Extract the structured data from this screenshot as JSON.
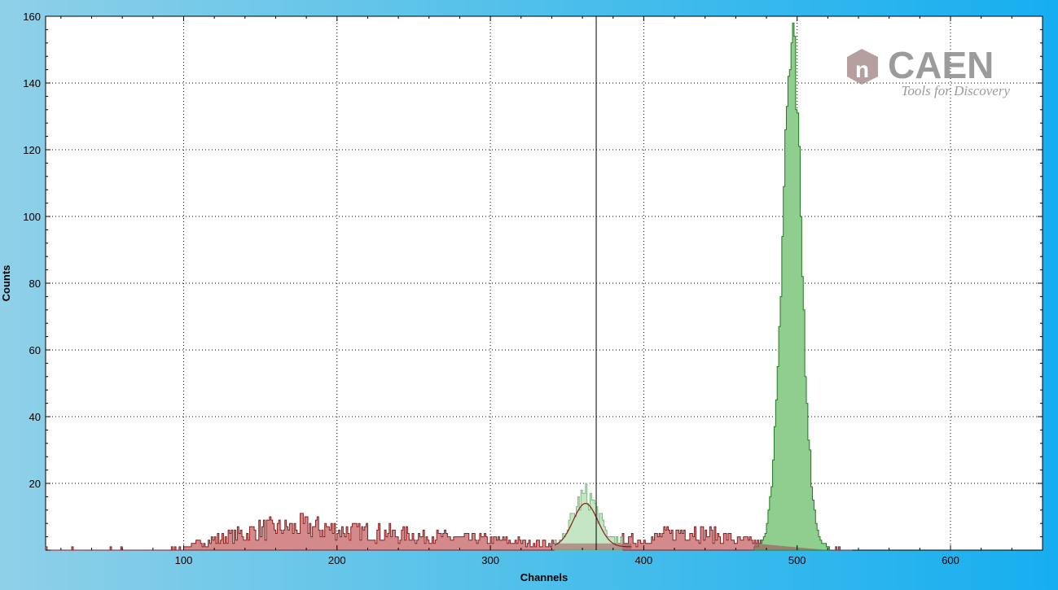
{
  "logo": {
    "brand": "CAEN",
    "tagline": "Tools for Discovery",
    "mark_glyph": "n",
    "color": "#8a8a8a",
    "mark_color": "#9c7f7f"
  },
  "colors": {
    "plot_bg": "#ffffff",
    "grid": "#000000",
    "red_fill": "#d48a8a",
    "red_line": "#8b1a1a",
    "green_fill": "#8fce8f",
    "green_line": "#1f7a1f",
    "light_green_fill": "#c4e6c4",
    "cursor": "#000000"
  },
  "chart_data": {
    "type": "histogram",
    "xlabel": "Channels",
    "ylabel": "Counts",
    "xlim": [
      10,
      660
    ],
    "ylim": [
      0,
      160
    ],
    "xticks": [
      100,
      200,
      300,
      400,
      500,
      600
    ],
    "yticks": [
      20,
      40,
      60,
      80,
      100,
      120,
      140,
      160
    ],
    "grid": true,
    "cursor_channel": 369,
    "series": [
      {
        "role": "background spectrum (red)",
        "channel_range": [
          10,
          535
        ],
        "description_points": [
          {
            "x": 10,
            "y": 1
          },
          {
            "x": 80,
            "y": 1
          },
          {
            "x": 100,
            "y": 1
          },
          {
            "x": 120,
            "y": 3
          },
          {
            "x": 150,
            "y": 6
          },
          {
            "x": 180,
            "y": 7
          },
          {
            "x": 200,
            "y": 6
          },
          {
            "x": 230,
            "y": 5
          },
          {
            "x": 260,
            "y": 4
          },
          {
            "x": 300,
            "y": 3
          },
          {
            "x": 340,
            "y": 2
          },
          {
            "x": 370,
            "y": 3
          },
          {
            "x": 400,
            "y": 3
          },
          {
            "x": 430,
            "y": 6
          },
          {
            "x": 460,
            "y": 3
          },
          {
            "x": 500,
            "y": 1
          },
          {
            "x": 535,
            "y": 1
          }
        ]
      },
      {
        "role": "peak region 1 (light green)",
        "channel_range": [
          342,
          385
        ],
        "peak_channel": 362,
        "peak_counts": 17
      },
      {
        "role": "peak region 2 (green)",
        "channel_range": [
          472,
          520
        ],
        "peak_channel": 496,
        "peak_counts": 150
      },
      {
        "role": "gaussian fit (dark red line)",
        "center": 362,
        "sigma": 8,
        "amplitude": 13,
        "range": [
          342,
          392
        ]
      }
    ]
  }
}
